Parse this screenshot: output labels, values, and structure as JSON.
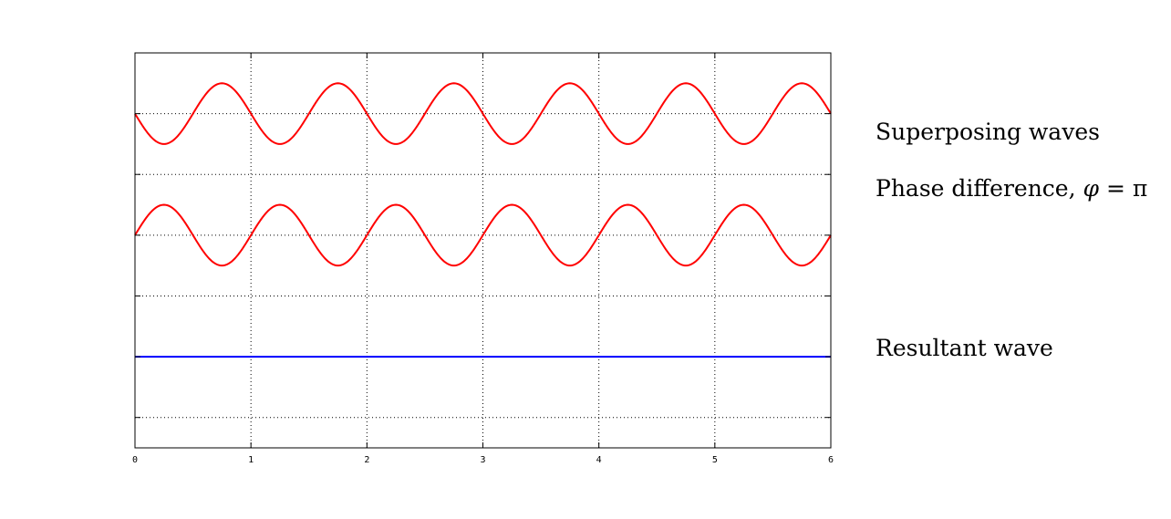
{
  "chart_data": {
    "type": "line",
    "title": "",
    "xlabel": "",
    "ylabel": "",
    "xlim": [
      0,
      6
    ],
    "ylim": [
      -1.5,
      5
    ],
    "xticks": [
      0,
      1,
      2,
      3,
      4,
      5,
      6
    ],
    "xtick_labels": [
      "0",
      "1",
      "2",
      "3",
      "4",
      "5",
      "6"
    ],
    "yticks": [
      -1,
      0,
      1,
      2,
      3,
      4
    ],
    "grid": true,
    "grid_style": "dotted",
    "series": [
      {
        "function": "y = 4 - 0.5*sin(2*pi*x)",
        "frequency": 1,
        "amplitude": 0.5,
        "offset": 4,
        "phase": 3.14159265,
        "color": "#ff0000"
      },
      {
        "function": "y = 2 + 0.5*sin(2*pi*x)",
        "frequency": 1,
        "amplitude": 0.5,
        "offset": 2,
        "phase": 0,
        "color": "#ff0000"
      },
      {
        "function": "y = 0",
        "frequency": 1,
        "amplitude": 0,
        "offset": 0,
        "phase": 0,
        "color": "#0000ff"
      }
    ]
  },
  "annotations": {
    "superposing": "Superposing waves",
    "phase_prefix": "Phase difference, ",
    "phase_symbol": "φ",
    "phase_suffix": " = π",
    "resultant": "Resultant wave"
  }
}
